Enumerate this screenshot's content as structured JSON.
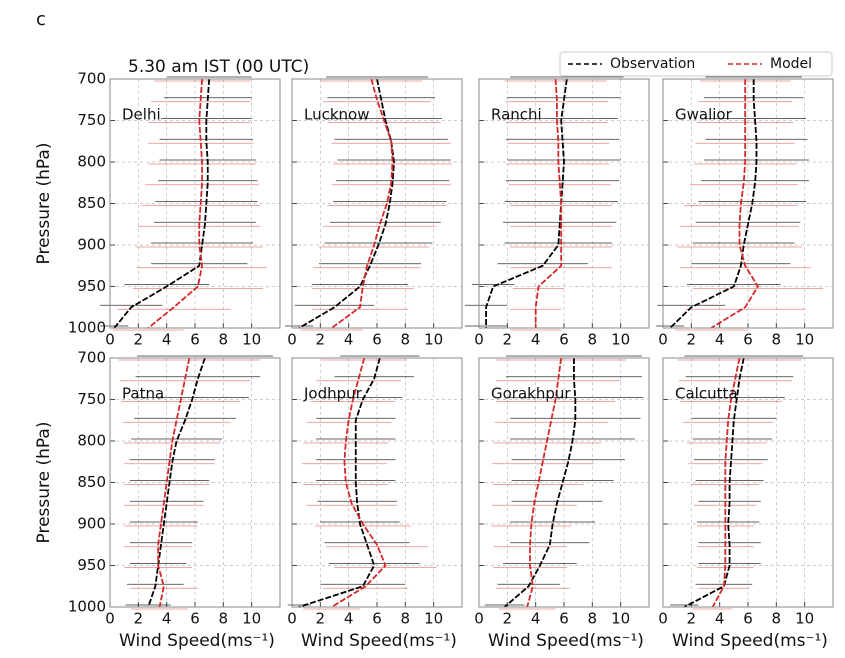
{
  "panel_label": "c",
  "title": "5.30 am IST (00 UTC)",
  "chart_data": [
    {
      "type": "line",
      "name": "Delhi",
      "show_xlabel": false,
      "show_ylabel": true,
      "levels": [
        700,
        725,
        750,
        775,
        800,
        825,
        850,
        875,
        900,
        925,
        950,
        975,
        1000
      ],
      "series": [
        {
          "name": "Observation",
          "color": "#000000",
          "values": [
            7.0,
            6.9,
            6.8,
            6.8,
            6.9,
            6.9,
            6.8,
            6.7,
            6.5,
            6.3,
            4.0,
            1.5,
            0.3
          ],
          "errors": [
            3.0,
            3.1,
            3.2,
            3.3,
            3.4,
            3.5,
            3.6,
            3.6,
            3.6,
            3.4,
            3.0,
            2.2,
            1.0
          ]
        },
        {
          "name": "Model",
          "color": "#d62728",
          "values": [
            6.5,
            6.4,
            6.3,
            6.4,
            6.5,
            6.5,
            6.4,
            6.3,
            6.3,
            6.5,
            6.2,
            4.5,
            2.7
          ],
          "errors": [
            3.4,
            3.5,
            3.6,
            3.7,
            3.8,
            4.0,
            4.2,
            4.3,
            4.5,
            4.6,
            4.6,
            4.0,
            2.5
          ]
        }
      ],
      "ylabel": "Pressure (hPa)",
      "xlim": [
        0,
        12
      ],
      "ylim": [
        1000,
        700
      ],
      "xticks": [
        0,
        2,
        4,
        6,
        8,
        10
      ],
      "yticks": [
        700,
        750,
        800,
        850,
        900,
        950,
        1000
      ],
      "grid": true
    },
    {
      "type": "line",
      "name": "Lucknow",
      "show_xlabel": false,
      "show_ylabel": false,
      "levels": [
        700,
        725,
        750,
        775,
        800,
        825,
        850,
        875,
        900,
        925,
        950,
        975,
        1000
      ],
      "series": [
        {
          "name": "Observation",
          "color": "#000000",
          "values": [
            6.0,
            6.3,
            6.6,
            7.0,
            7.2,
            7.1,
            6.9,
            6.6,
            6.1,
            5.5,
            4.8,
            3.0,
            0.5
          ],
          "errors": [
            3.6,
            3.8,
            4.0,
            4.0,
            4.0,
            4.0,
            4.0,
            3.9,
            3.8,
            3.6,
            3.4,
            2.8,
            1.0
          ]
        },
        {
          "name": "Model",
          "color": "#d62728",
          "values": [
            5.6,
            6.0,
            6.5,
            7.0,
            7.1,
            7.0,
            6.7,
            6.2,
            5.8,
            5.3,
            5.0,
            4.8,
            2.8
          ],
          "errors": [
            3.6,
            3.8,
            4.0,
            4.2,
            4.2,
            4.2,
            4.2,
            4.0,
            3.9,
            3.8,
            3.6,
            3.4,
            2.2
          ]
        }
      ],
      "xlim": [
        0,
        12
      ],
      "ylim": [
        1000,
        700
      ],
      "xticks": [
        0,
        2,
        4,
        6,
        8,
        10
      ],
      "yticks": [
        700,
        750,
        800,
        850,
        900,
        950,
        1000
      ],
      "grid": true
    },
    {
      "type": "line",
      "name": "Ranchi",
      "show_xlabel": false,
      "show_ylabel": false,
      "levels": [
        700,
        725,
        750,
        775,
        800,
        825,
        850,
        875,
        900,
        925,
        950,
        975,
        1000
      ],
      "series": [
        {
          "name": "Observation",
          "color": "#000000",
          "values": [
            6.2,
            6.0,
            5.8,
            5.9,
            6.0,
            5.9,
            5.8,
            5.7,
            5.6,
            4.5,
            1.0,
            0.5,
            0.5
          ],
          "errors": [
            4.0,
            4.0,
            4.0,
            4.0,
            4.0,
            4.0,
            4.0,
            4.0,
            3.8,
            3.2,
            1.5,
            1.5,
            1.5
          ]
        },
        {
          "name": "Model",
          "color": "#d62728",
          "values": [
            5.4,
            5.5,
            5.5,
            5.6,
            5.6,
            5.7,
            5.8,
            5.8,
            5.8,
            5.8,
            4.2,
            4.0,
            4.0
          ],
          "errors": [
            3.6,
            3.6,
            3.6,
            3.6,
            3.6,
            3.6,
            3.6,
            3.6,
            3.6,
            3.6,
            1.8,
            1.8,
            1.8
          ]
        }
      ],
      "xlim": [
        0,
        12
      ],
      "ylim": [
        1000,
        700
      ],
      "xticks": [
        0,
        2,
        4,
        6,
        8,
        10
      ],
      "yticks": [
        700,
        750,
        800,
        850,
        900,
        950,
        1000
      ],
      "grid": true
    },
    {
      "type": "line",
      "name": "Gwalior",
      "show_xlabel": false,
      "show_ylabel": false,
      "levels": [
        700,
        725,
        750,
        775,
        800,
        825,
        850,
        875,
        900,
        925,
        950,
        975,
        1000
      ],
      "series": [
        {
          "name": "Observation",
          "color": "#000000",
          "values": [
            6.4,
            6.4,
            6.5,
            6.6,
            6.6,
            6.5,
            6.3,
            6.0,
            5.7,
            5.5,
            5.0,
            2.0,
            0.5
          ],
          "errors": [
            3.4,
            3.5,
            3.6,
            3.6,
            3.7,
            3.8,
            3.8,
            3.7,
            3.6,
            3.5,
            3.3,
            2.4,
            1.0
          ]
        },
        {
          "name": "Model",
          "color": "#d62728",
          "values": [
            5.8,
            5.8,
            5.8,
            5.8,
            5.8,
            5.7,
            5.5,
            5.4,
            5.4,
            5.8,
            6.7,
            5.8,
            3.4
          ],
          "errors": [
            3.2,
            3.3,
            3.4,
            3.5,
            3.6,
            3.8,
            4.0,
            4.2,
            4.4,
            4.6,
            4.6,
            4.2,
            2.6
          ]
        }
      ],
      "xlim": [
        0,
        12
      ],
      "ylim": [
        1000,
        700
      ],
      "xticks": [
        0,
        2,
        4,
        6,
        8,
        10
      ],
      "yticks": [
        700,
        750,
        800,
        850,
        900,
        950,
        1000
      ],
      "grid": true
    },
    {
      "type": "line",
      "name": "Patna",
      "show_xlabel": true,
      "show_ylabel": true,
      "levels": [
        700,
        725,
        750,
        775,
        800,
        825,
        850,
        875,
        900,
        925,
        950,
        975,
        1000
      ],
      "series": [
        {
          "name": "Observation",
          "color": "#000000",
          "values": [
            6.7,
            6.2,
            5.8,
            5.3,
            4.7,
            4.4,
            4.2,
            4.0,
            3.8,
            3.6,
            3.4,
            3.2,
            2.7
          ],
          "errors": [
            4.8,
            4.4,
            4.0,
            3.6,
            3.2,
            3.0,
            2.8,
            2.6,
            2.4,
            2.2,
            2.0,
            2.0,
            1.6
          ]
        },
        {
          "name": "Model",
          "color": "#d62728",
          "values": [
            5.6,
            5.3,
            5.0,
            4.7,
            4.4,
            4.2,
            4.0,
            3.8,
            3.6,
            3.4,
            3.4,
            3.8,
            3.5
          ],
          "errors": [
            5.0,
            4.6,
            4.2,
            3.8,
            3.4,
            3.2,
            3.0,
            2.8,
            2.6,
            2.4,
            2.4,
            2.4,
            2.0
          ]
        }
      ],
      "xlabel": "Wind Speed(ms⁻¹)",
      "ylabel": "Pressure (hPa)",
      "xlim": [
        0,
        12
      ],
      "ylim": [
        1000,
        700
      ],
      "xticks": [
        0,
        2,
        4,
        6,
        8,
        10
      ],
      "yticks": [
        700,
        750,
        800,
        850,
        900,
        950,
        1000
      ],
      "grid": true
    },
    {
      "type": "line",
      "name": "Jodhpur",
      "show_xlabel": true,
      "show_ylabel": false,
      "levels": [
        700,
        725,
        750,
        775,
        800,
        825,
        850,
        875,
        900,
        925,
        950,
        975,
        1000
      ],
      "series": [
        {
          "name": "Observation",
          "color": "#000000",
          "values": [
            6.2,
            5.8,
            5.0,
            4.5,
            4.5,
            4.5,
            4.5,
            4.6,
            4.8,
            5.3,
            5.8,
            5.0,
            0.5
          ],
          "errors": [
            2.8,
            2.8,
            2.8,
            2.8,
            2.8,
            2.8,
            2.8,
            2.8,
            2.8,
            3.0,
            3.2,
            3.0,
            0.8
          ]
        },
        {
          "name": "Model",
          "color": "#d62728",
          "values": [
            5.1,
            4.7,
            4.3,
            4.0,
            3.8,
            3.7,
            3.8,
            4.2,
            5.0,
            6.0,
            6.6,
            5.2,
            2.8
          ],
          "errors": [
            3.0,
            3.0,
            3.0,
            3.0,
            3.0,
            3.0,
            3.0,
            3.2,
            3.4,
            3.6,
            3.6,
            3.0,
            2.0
          ]
        }
      ],
      "xlabel": "Wind Speed(ms⁻¹)",
      "xlim": [
        0,
        12
      ],
      "ylim": [
        1000,
        700
      ],
      "xticks": [
        0,
        2,
        4,
        6,
        8,
        10
      ],
      "yticks": [
        700,
        750,
        800,
        850,
        900,
        950,
        1000
      ],
      "grid": true
    },
    {
      "type": "line",
      "name": "Gorakhpur",
      "show_xlabel": true,
      "show_ylabel": false,
      "levels": [
        700,
        725,
        750,
        775,
        800,
        825,
        850,
        875,
        900,
        925,
        950,
        975,
        1000
      ],
      "series": [
        {
          "name": "Observation",
          "color": "#000000",
          "values": [
            6.7,
            6.7,
            6.8,
            6.8,
            6.6,
            6.3,
            5.9,
            5.5,
            5.2,
            5.0,
            4.3,
            3.5,
            1.8
          ],
          "errors": [
            4.8,
            4.8,
            4.8,
            4.6,
            4.4,
            4.0,
            3.6,
            3.2,
            3.0,
            2.8,
            2.6,
            2.2,
            1.4
          ]
        },
        {
          "name": "Model",
          "color": "#d62728",
          "values": [
            5.8,
            5.6,
            5.4,
            5.1,
            4.8,
            4.5,
            4.2,
            3.9,
            3.7,
            3.6,
            3.6,
            3.8,
            3.4
          ],
          "errors": [
            4.6,
            4.4,
            4.2,
            4.0,
            3.8,
            3.6,
            3.2,
            3.0,
            2.8,
            2.6,
            2.6,
            2.6,
            2.0
          ]
        }
      ],
      "xlabel": "Wind Speed(ms⁻¹)",
      "xlim": [
        0,
        12
      ],
      "ylim": [
        1000,
        700
      ],
      "xticks": [
        0,
        2,
        4,
        6,
        8,
        10
      ],
      "yticks": [
        700,
        750,
        800,
        850,
        900,
        950,
        1000
      ],
      "grid": true
    },
    {
      "type": "line",
      "name": "Calcutta",
      "show_xlabel": true,
      "show_ylabel": false,
      "levels": [
        700,
        725,
        750,
        775,
        800,
        825,
        850,
        875,
        900,
        925,
        950,
        975,
        1000
      ],
      "series": [
        {
          "name": "Observation",
          "color": "#000000",
          "values": [
            5.7,
            5.4,
            5.2,
            5.0,
            4.9,
            4.8,
            4.7,
            4.7,
            4.6,
            4.7,
            4.7,
            4.3,
            1.5
          ],
          "errors": [
            4.2,
            3.8,
            3.4,
            3.0,
            2.8,
            2.6,
            2.4,
            2.2,
            2.2,
            2.2,
            2.2,
            2.0,
            1.0
          ]
        },
        {
          "name": "Model",
          "color": "#d62728",
          "values": [
            5.4,
            5.1,
            4.8,
            4.6,
            4.5,
            4.4,
            4.4,
            4.4,
            4.4,
            4.4,
            4.4,
            4.3,
            3.5
          ],
          "errors": [
            4.4,
            4.0,
            3.6,
            3.2,
            2.8,
            2.6,
            2.4,
            2.2,
            2.0,
            2.0,
            2.0,
            1.8,
            1.4
          ]
        }
      ],
      "xlabel": "Wind Speed(ms⁻¹)",
      "xlim": [
        0,
        12
      ],
      "ylim": [
        1000,
        700
      ],
      "xticks": [
        0,
        2,
        4,
        6,
        8,
        10
      ],
      "yticks": [
        700,
        750,
        800,
        850,
        900,
        950,
        1000
      ],
      "grid": true
    }
  ]
}
